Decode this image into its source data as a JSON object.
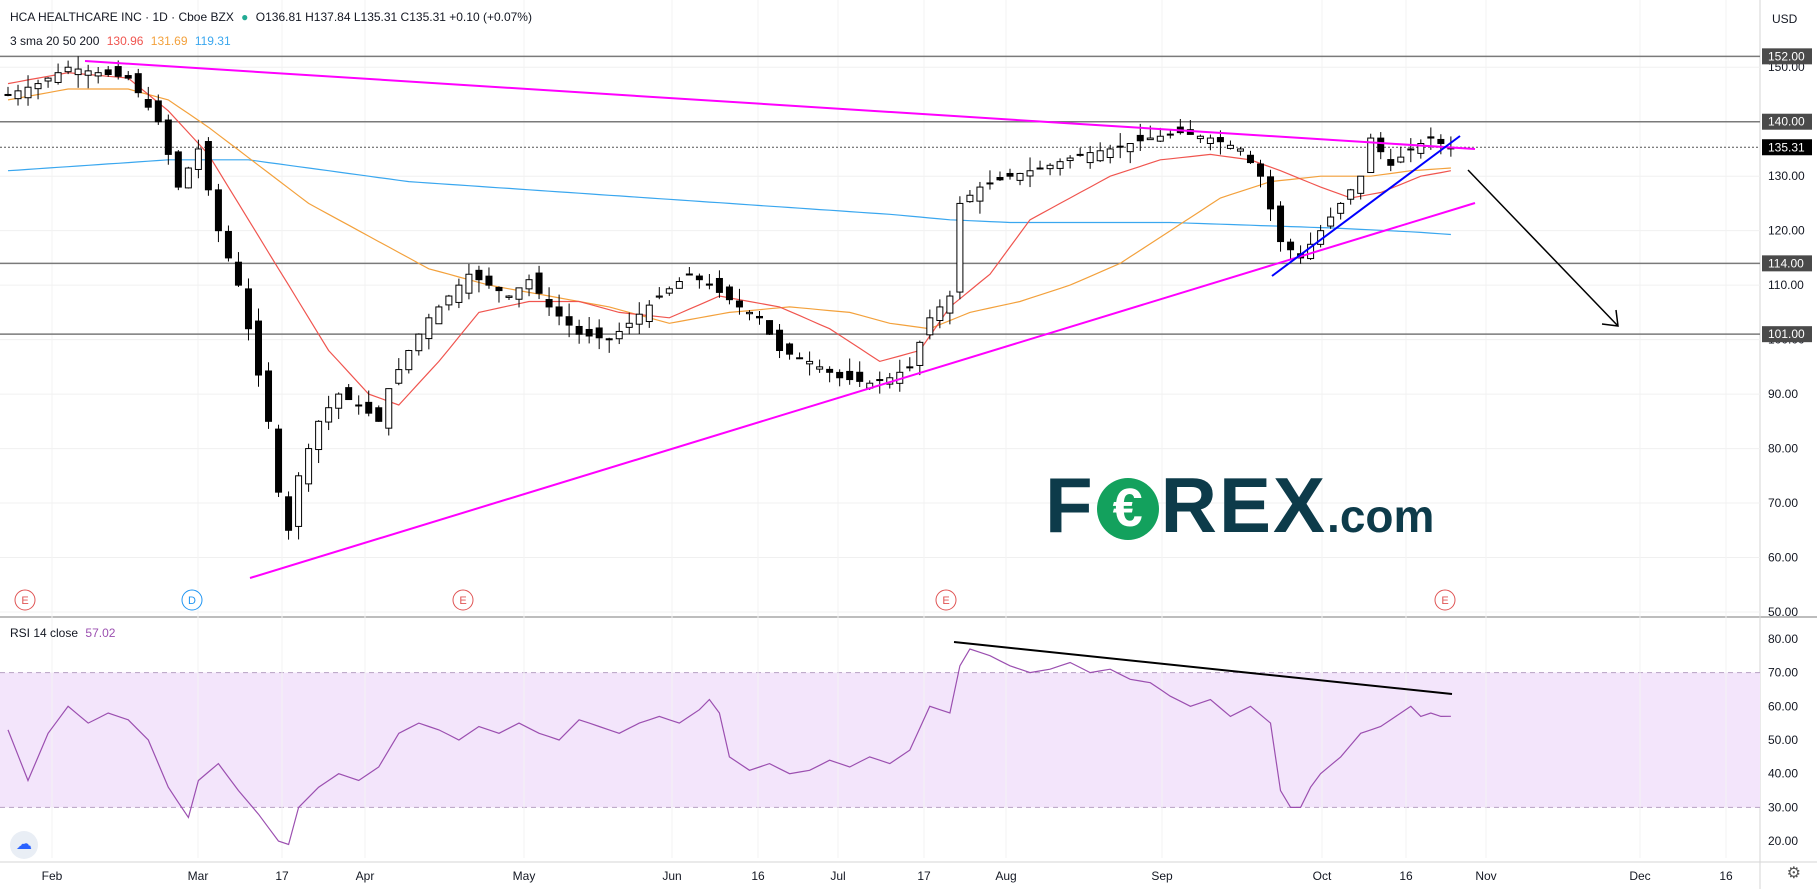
{
  "header": {
    "symbol": "HCA HEALTHCARE INC · 1D · Cboe BZX",
    "ohlc": "O136.81  H137.84  L135.31  C135.31  +0.10 (+0.07%)",
    "currency": "USD",
    "sma_label": "3 sma 20 50 200",
    "sma_values": [
      "130.96",
      "131.69",
      "119.31"
    ],
    "rsi_label": "RSI 14 close",
    "rsi_value": "57.02"
  },
  "colors": {
    "up": "#ffffff",
    "down": "#000000",
    "wick": "#000000",
    "sma20": "#f0554f",
    "sma50": "#f3a13c",
    "sma200": "#3aa7ef",
    "trend": "#ff00ff",
    "trend_short": "#0000ff",
    "rsi": "#9b4fb0",
    "rsi_band": "#f3e5fb",
    "level": "#7a7a7a"
  },
  "chart_data": [
    {
      "type": "candlestick",
      "title": "HCA HEALTHCARE INC · 1D · Cboe BZX",
      "ylim": [
        50,
        155
      ],
      "y_ticks": [
        "150.00",
        "140.00",
        "130.00",
        "120.00",
        "110.00",
        "100.00",
        "90.00",
        "80.00",
        "70.00",
        "60.00",
        "50.00"
      ],
      "x_ticks": [
        "Feb",
        "Mar",
        "17",
        "Apr",
        "May",
        "Jun",
        "16",
        "Jul",
        "17",
        "Aug",
        "Sep",
        "Oct",
        "16",
        "Nov",
        "Dec",
        "16"
      ],
      "levels": [
        "152.00",
        "140.00",
        "114.00",
        "101.00"
      ],
      "last_price": "135.31",
      "events": [
        "E",
        "D",
        "E",
        "E",
        "E"
      ],
      "anchors": [
        [
          0,
          145
        ],
        [
          3,
          147
        ],
        [
          6,
          150
        ],
        [
          9,
          149
        ],
        [
          12,
          148
        ],
        [
          15,
          140
        ],
        [
          17,
          128
        ],
        [
          19,
          135
        ],
        [
          21,
          120
        ],
        [
          23,
          110
        ],
        [
          24,
          102
        ],
        [
          26,
          85
        ],
        [
          27,
          72
        ],
        [
          28,
          65
        ],
        [
          29,
          75
        ],
        [
          31,
          85
        ],
        [
          33,
          90
        ],
        [
          35,
          88
        ],
        [
          37,
          85
        ],
        [
          38,
          91
        ],
        [
          40,
          98
        ],
        [
          42,
          104
        ],
        [
          44,
          108
        ],
        [
          46,
          112
        ],
        [
          48,
          110
        ],
        [
          50,
          108
        ],
        [
          52,
          111
        ],
        [
          54,
          106
        ],
        [
          57,
          101
        ],
        [
          60,
          100
        ],
        [
          62,
          103
        ],
        [
          65,
          108
        ],
        [
          68,
          112
        ],
        [
          70,
          110
        ],
        [
          73,
          106
        ],
        [
          75,
          104
        ],
        [
          77,
          98
        ],
        [
          80,
          96
        ],
        [
          83,
          93
        ],
        [
          86,
          92
        ],
        [
          88,
          93
        ],
        [
          90,
          95
        ],
        [
          92,
          104
        ],
        [
          94,
          108
        ],
        [
          95,
          125
        ],
        [
          97,
          128
        ],
        [
          100,
          130
        ],
        [
          104,
          132
        ],
        [
          107,
          134
        ],
        [
          110,
          135
        ],
        [
          114,
          137
        ],
        [
          117,
          138
        ],
        [
          120,
          137
        ],
        [
          123,
          135
        ],
        [
          125,
          130
        ],
        [
          127,
          118
        ],
        [
          129,
          115
        ],
        [
          131,
          120
        ],
        [
          133,
          125
        ],
        [
          135,
          130
        ],
        [
          136,
          137
        ],
        [
          138,
          132
        ],
        [
          140,
          135
        ],
        [
          142,
          137
        ],
        [
          143,
          136
        ],
        [
          144,
          135.31
        ]
      ],
      "sma20_anchors": [
        [
          0,
          147
        ],
        [
          6,
          149
        ],
        [
          12,
          148
        ],
        [
          16,
          142
        ],
        [
          20,
          134
        ],
        [
          24,
          122
        ],
        [
          28,
          110
        ],
        [
          32,
          98
        ],
        [
          36,
          90
        ],
        [
          39,
          88
        ],
        [
          43,
          96
        ],
        [
          47,
          105
        ],
        [
          52,
          107
        ],
        [
          57,
          107
        ],
        [
          61,
          105
        ],
        [
          66,
          104
        ],
        [
          71,
          108
        ],
        [
          77,
          106
        ],
        [
          82,
          102
        ],
        [
          87,
          96
        ],
        [
          91,
          98
        ],
        [
          94,
          106
        ],
        [
          98,
          112
        ],
        [
          102,
          122
        ],
        [
          106,
          126
        ],
        [
          110,
          130
        ],
        [
          115,
          133
        ],
        [
          120,
          134
        ],
        [
          124,
          133
        ],
        [
          127,
          131
        ],
        [
          131,
          128
        ],
        [
          134,
          126
        ],
        [
          137,
          127
        ],
        [
          141,
          130
        ],
        [
          144,
          131
        ]
      ],
      "sma50_anchors": [
        [
          0,
          144
        ],
        [
          6,
          146
        ],
        [
          12,
          146
        ],
        [
          16,
          144
        ],
        [
          20,
          139
        ],
        [
          25,
          132
        ],
        [
          30,
          125
        ],
        [
          36,
          119
        ],
        [
          42,
          113
        ],
        [
          48,
          110
        ],
        [
          54,
          108
        ],
        [
          60,
          106
        ],
        [
          66,
          103
        ],
        [
          72,
          105
        ],
        [
          78,
          106
        ],
        [
          84,
          105
        ],
        [
          88,
          103
        ],
        [
          92,
          102
        ],
        [
          96,
          105
        ],
        [
          101,
          107
        ],
        [
          106,
          110
        ],
        [
          111,
          114
        ],
        [
          116,
          120
        ],
        [
          121,
          126
        ],
        [
          126,
          129
        ],
        [
          131,
          130
        ],
        [
          136,
          130
        ],
        [
          140,
          131
        ],
        [
          144,
          131.5
        ]
      ],
      "sma200_anchors": [
        [
          0,
          131
        ],
        [
          8,
          132
        ],
        [
          16,
          133
        ],
        [
          24,
          133
        ],
        [
          32,
          131
        ],
        [
          40,
          129
        ],
        [
          48,
          128
        ],
        [
          56,
          127
        ],
        [
          64,
          126
        ],
        [
          72,
          125
        ],
        [
          80,
          124
        ],
        [
          88,
          123
        ],
        [
          94,
          122
        ],
        [
          100,
          121.5
        ],
        [
          108,
          121.5
        ],
        [
          116,
          121.5
        ],
        [
          124,
          121
        ],
        [
          132,
          120.5
        ],
        [
          140,
          119.8
        ],
        [
          144,
          119.3
        ]
      ]
    },
    {
      "type": "line",
      "title": "RSI 14 close",
      "ylim": [
        15,
        85
      ],
      "y_ticks": [
        "80.00",
        "70.00",
        "60.00",
        "50.00",
        "40.00",
        "30.00",
        "20.00"
      ],
      "band": [
        30,
        70
      ],
      "anchors": [
        [
          0,
          53
        ],
        [
          2,
          38
        ],
        [
          4,
          52
        ],
        [
          6,
          60
        ],
        [
          8,
          55
        ],
        [
          10,
          58
        ],
        [
          12,
          56
        ],
        [
          14,
          50
        ],
        [
          16,
          36
        ],
        [
          18,
          27
        ],
        [
          19,
          38
        ],
        [
          21,
          43
        ],
        [
          23,
          35
        ],
        [
          25,
          28
        ],
        [
          27,
          20
        ],
        [
          28,
          19
        ],
        [
          29,
          30
        ],
        [
          31,
          36
        ],
        [
          33,
          40
        ],
        [
          35,
          38
        ],
        [
          37,
          42
        ],
        [
          39,
          52
        ],
        [
          41,
          55
        ],
        [
          43,
          53
        ],
        [
          45,
          50
        ],
        [
          47,
          54
        ],
        [
          49,
          52
        ],
        [
          51,
          55
        ],
        [
          53,
          52
        ],
        [
          55,
          50
        ],
        [
          57,
          56
        ],
        [
          59,
          54
        ],
        [
          61,
          52
        ],
        [
          63,
          55
        ],
        [
          65,
          57
        ],
        [
          67,
          55
        ],
        [
          69,
          59
        ],
        [
          70,
          62
        ],
        [
          71,
          58
        ],
        [
          72,
          45
        ],
        [
          74,
          41
        ],
        [
          76,
          43
        ],
        [
          78,
          40
        ],
        [
          80,
          41
        ],
        [
          82,
          44
        ],
        [
          84,
          42
        ],
        [
          86,
          45
        ],
        [
          88,
          43
        ],
        [
          90,
          47
        ],
        [
          92,
          60
        ],
        [
          94,
          58
        ],
        [
          95,
          72
        ],
        [
          96,
          77
        ],
        [
          98,
          75
        ],
        [
          100,
          72
        ],
        [
          102,
          70
        ],
        [
          104,
          71
        ],
        [
          106,
          73
        ],
        [
          108,
          70
        ],
        [
          110,
          71
        ],
        [
          112,
          68
        ],
        [
          114,
          67
        ],
        [
          116,
          63
        ],
        [
          118,
          60
        ],
        [
          120,
          62
        ],
        [
          122,
          57
        ],
        [
          124,
          60
        ],
        [
          126,
          55
        ],
        [
          127,
          35
        ],
        [
          128,
          30
        ],
        [
          129,
          30
        ],
        [
          130,
          36
        ],
        [
          131,
          40
        ],
        [
          133,
          45
        ],
        [
          135,
          52
        ],
        [
          137,
          54
        ],
        [
          139,
          58
        ],
        [
          140,
          60
        ],
        [
          141,
          57
        ],
        [
          142,
          58
        ],
        [
          143,
          57
        ],
        [
          144,
          57.02
        ]
      ]
    }
  ]
}
